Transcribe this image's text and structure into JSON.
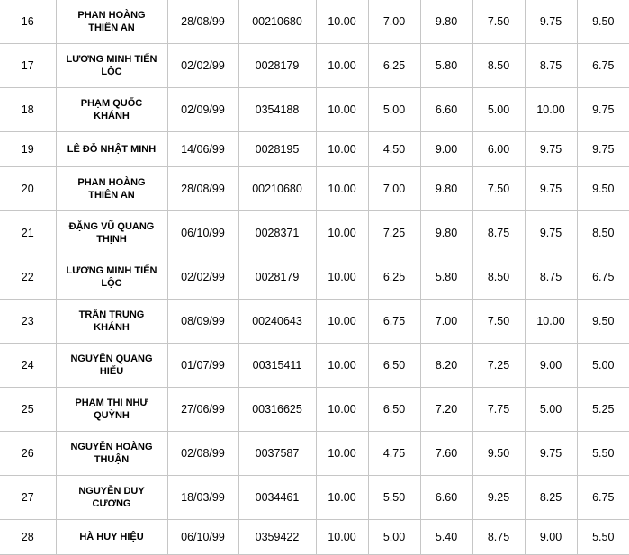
{
  "colors": {
    "border": "#c6c6c6",
    "text": "#000000",
    "background": "#ffffff"
  },
  "table": {
    "rows": [
      {
        "index": "16",
        "name": "PHAN HOÀNG THIÊN AN",
        "dob": "28/08/99",
        "id": "00210680",
        "scores": [
          "10.00",
          "7.00",
          "9.80",
          "7.50",
          "9.75",
          "9.50"
        ]
      },
      {
        "index": "17",
        "name": "LƯƠNG MINH TIẾN LỘC",
        "dob": "02/02/99",
        "id": "0028179",
        "scores": [
          "10.00",
          "6.25",
          "5.80",
          "8.50",
          "8.75",
          "6.75"
        ]
      },
      {
        "index": "18",
        "name": "PHẠM QUỐC KHÁNH",
        "dob": "02/09/99",
        "id": "0354188",
        "scores": [
          "10.00",
          "5.00",
          "6.60",
          "5.00",
          "10.00",
          "9.75"
        ]
      },
      {
        "index": "19",
        "name": "LÊ ĐỖ NHẬT MINH",
        "dob": "14/06/99",
        "id": "0028195",
        "scores": [
          "10.00",
          "4.50",
          "9.00",
          "6.00",
          "9.75",
          "9.75"
        ]
      },
      {
        "index": "20",
        "name": "PHAN HOÀNG THIÊN AN",
        "dob": "28/08/99",
        "id": "00210680",
        "scores": [
          "10.00",
          "7.00",
          "9.80",
          "7.50",
          "9.75",
          "9.50"
        ]
      },
      {
        "index": "21",
        "name": "ĐẶNG VŨ QUANG THỊNH",
        "dob": "06/10/99",
        "id": "0028371",
        "scores": [
          "10.00",
          "7.25",
          "9.80",
          "8.75",
          "9.75",
          "8.50"
        ]
      },
      {
        "index": "22",
        "name": "LƯƠNG MINH TIẾN LỘC",
        "dob": "02/02/99",
        "id": "0028179",
        "scores": [
          "10.00",
          "6.25",
          "5.80",
          "8.50",
          "8.75",
          "6.75"
        ]
      },
      {
        "index": "23",
        "name": "TRẦN TRUNG KHÁNH",
        "dob": "08/09/99",
        "id": "00240643",
        "scores": [
          "10.00",
          "6.75",
          "7.00",
          "7.50",
          "10.00",
          "9.50"
        ]
      },
      {
        "index": "24",
        "name": "NGUYỄN QUANG HIẾU",
        "dob": "01/07/99",
        "id": "00315411",
        "scores": [
          "10.00",
          "6.50",
          "8.20",
          "7.25",
          "9.00",
          "5.00"
        ]
      },
      {
        "index": "25",
        "name": "PHẠM THỊ NHƯ QUỲNH",
        "dob": "27/06/99",
        "id": "00316625",
        "scores": [
          "10.00",
          "6.50",
          "7.20",
          "7.75",
          "5.00",
          "5.25"
        ]
      },
      {
        "index": "26",
        "name": "NGUYỄN HOÀNG THUẬN",
        "dob": "02/08/99",
        "id": "0037587",
        "scores": [
          "10.00",
          "4.75",
          "7.60",
          "9.50",
          "9.75",
          "5.50"
        ]
      },
      {
        "index": "27",
        "name": "NGUYỄN DUY CƯƠNG",
        "dob": "18/03/99",
        "id": "0034461",
        "scores": [
          "10.00",
          "5.50",
          "6.60",
          "9.25",
          "8.25",
          "6.75"
        ]
      },
      {
        "index": "28",
        "name": "HÀ HUY HIỆU",
        "dob": "06/10/99",
        "id": "0359422",
        "scores": [
          "10.00",
          "5.00",
          "5.40",
          "8.75",
          "9.00",
          "5.50"
        ]
      }
    ]
  }
}
